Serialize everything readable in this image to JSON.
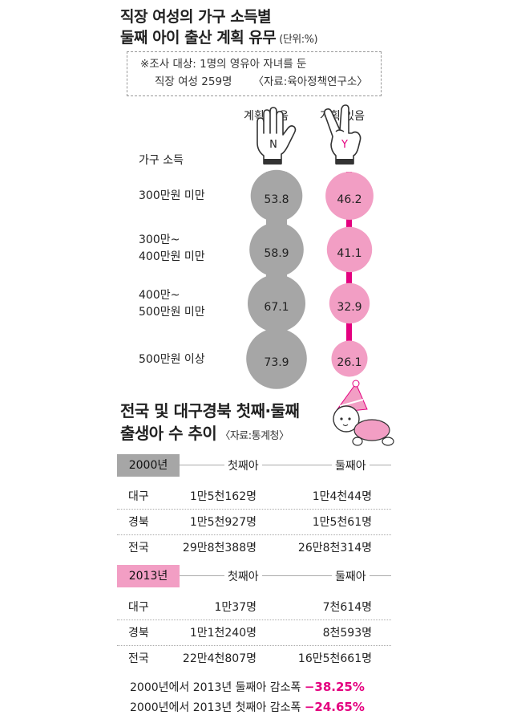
{
  "chart_data": [
    {
      "type": "bubble",
      "title_line1": "직장 여성의 가구 소득별",
      "title_line2": "둘째 아이 출산 계획 유무",
      "unit": "(단위:%)",
      "note_line1": "※조사 대상: 1명의 영유아 자녀를 둔",
      "note_line2": "직장 여성 259명",
      "source": "〈자료:육아정책연구소〉",
      "row_header": "가구 소득",
      "series": [
        {
          "name": "계획 없음",
          "icon_letter": "N",
          "color": "#a6a6a6",
          "values": [
            53.8,
            58.9,
            67.1,
            73.9
          ]
        },
        {
          "name": "계획 있음",
          "icon_letter": "Y",
          "color": "#f29ec4",
          "values": [
            46.2,
            41.1,
            32.9,
            26.1
          ]
        }
      ],
      "categories": [
        {
          "line1": "300만원 미만",
          "line2": ""
        },
        {
          "line1": "300만~",
          "line2": "400만원 미만"
        },
        {
          "line1": "400만~",
          "line2": "500만원 미만"
        },
        {
          "line1": "500만원 이상",
          "line2": ""
        }
      ],
      "accent": "#e4007f"
    },
    {
      "type": "table",
      "title_line1": "전국 및 대구경북 첫째·둘째",
      "title_line2": "출생아 수 추이",
      "source": "〈자료:통계청〉",
      "columns": [
        "첫째아",
        "둘째아"
      ],
      "groups": [
        {
          "year": "2000년",
          "tag_color": "#a6a6a6",
          "rows": [
            {
              "region": "대구",
              "first": "1만5천162명",
              "second": "1만4천44명"
            },
            {
              "region": "경북",
              "first": "1만5천927명",
              "second": "1만5천61명"
            },
            {
              "region": "전국",
              "first": "29만8천388명",
              "second": "26만8천314명"
            }
          ]
        },
        {
          "year": "2013년",
          "tag_color": "#f29ec4",
          "rows": [
            {
              "region": "대구",
              "first": "1만37명",
              "second": "7천614명"
            },
            {
              "region": "경북",
              "first": "1만1천240명",
              "second": "8천593명"
            },
            {
              "region": "전국",
              "first": "22만4천807명",
              "second": "16만5천661명"
            }
          ]
        }
      ],
      "summary": [
        {
          "text": "2000년에서 2013년 둘째아 감소폭",
          "value": "−38.25%"
        },
        {
          "text": "2000년에서 2013년 첫째아 감소폭",
          "value": "−24.65%"
        }
      ]
    }
  ]
}
